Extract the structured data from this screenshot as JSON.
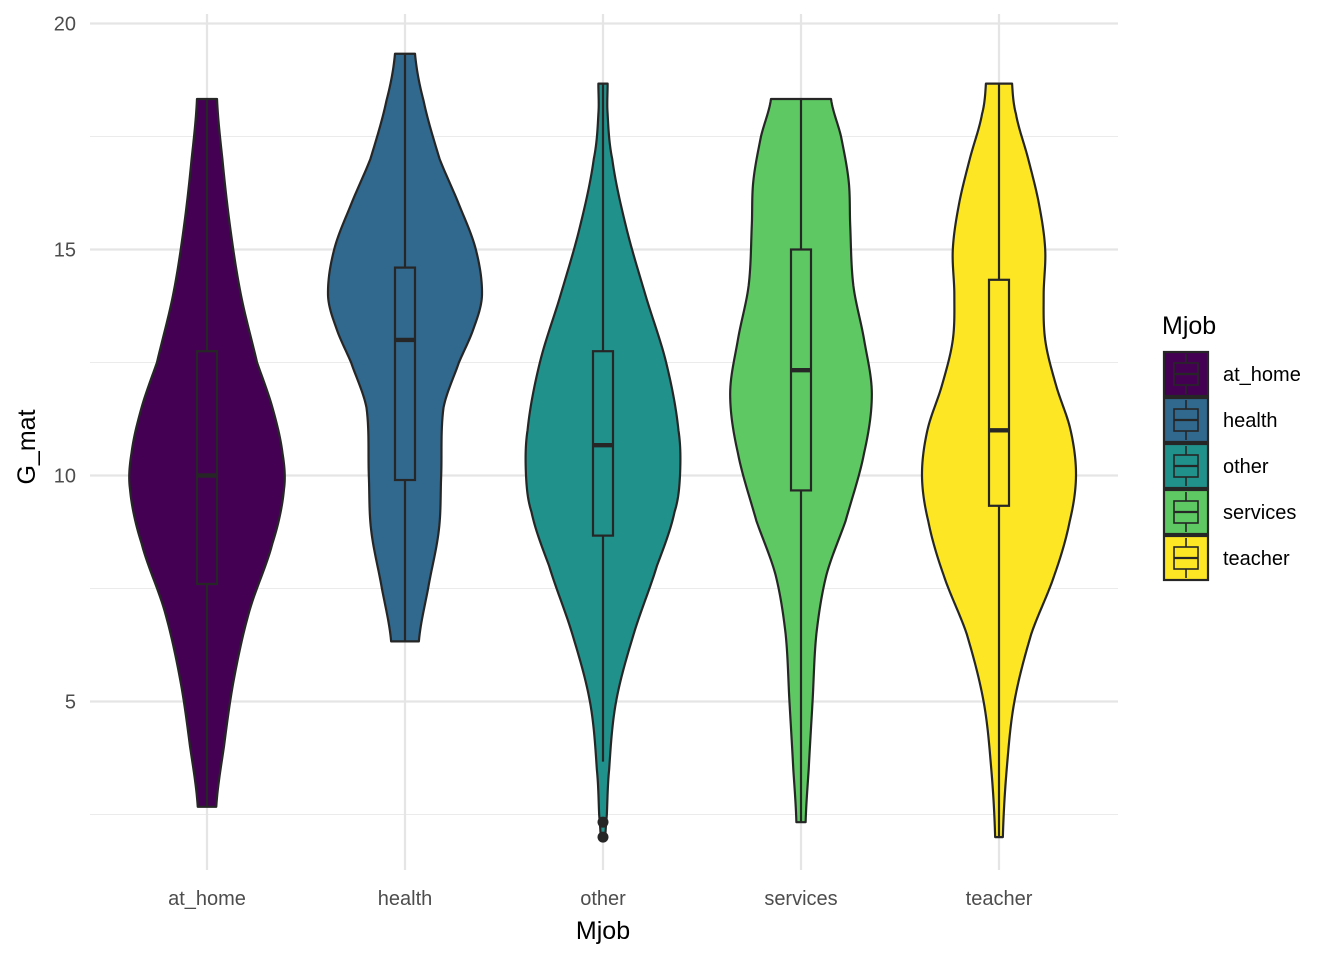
{
  "chart_data": {
    "type": "violin",
    "title": "",
    "xlabel": "Mjob",
    "ylabel": "G_mat",
    "ylim": [
      1.5,
      20.5
    ],
    "yticks": [
      5,
      10,
      15,
      20
    ],
    "y_minor_gridlines": [
      2.5,
      7.5,
      12.5,
      17.5
    ],
    "grid": true,
    "legend": {
      "title": "Mjob",
      "placement": "right",
      "entries": [
        "at_home",
        "health",
        "other",
        "services",
        "teacher"
      ]
    },
    "categories": [
      "at_home",
      "health",
      "other",
      "services",
      "teacher"
    ],
    "series": [
      {
        "name": "at_home",
        "color": "#440154",
        "min": 2.67,
        "max": 18.33,
        "box": {
          "lower_whisker": 2.67,
          "q1": 7.6,
          "median": 10.0,
          "q3": 12.75,
          "upper_whisker": 18.33
        },
        "outliers": [],
        "density_profile": [
          [
            2.67,
            0.12
          ],
          [
            4.0,
            0.22
          ],
          [
            5.5,
            0.35
          ],
          [
            7.0,
            0.55
          ],
          [
            8.5,
            0.85
          ],
          [
            9.7,
            1.0
          ],
          [
            10.5,
            0.98
          ],
          [
            11.5,
            0.85
          ],
          [
            12.5,
            0.65
          ],
          [
            14.0,
            0.44
          ],
          [
            15.5,
            0.3
          ],
          [
            17.0,
            0.2
          ],
          [
            18.33,
            0.13
          ]
        ]
      },
      {
        "name": "health",
        "color": "#31688e",
        "min": 6.33,
        "max": 19.33,
        "box": {
          "lower_whisker": 6.33,
          "q1": 9.9,
          "median": 13.0,
          "q3": 14.6,
          "upper_whisker": 19.33
        },
        "outliers": [],
        "density_profile": [
          [
            6.33,
            0.18
          ],
          [
            7.5,
            0.3
          ],
          [
            8.8,
            0.44
          ],
          [
            10.0,
            0.47
          ],
          [
            11.5,
            0.5
          ],
          [
            12.5,
            0.7
          ],
          [
            13.3,
            0.9
          ],
          [
            14.0,
            1.0
          ],
          [
            15.0,
            0.92
          ],
          [
            16.0,
            0.7
          ],
          [
            17.0,
            0.45
          ],
          [
            18.3,
            0.24
          ],
          [
            19.33,
            0.13
          ]
        ]
      },
      {
        "name": "other",
        "color": "#21918c",
        "min": 2.0,
        "max": 18.67,
        "box": {
          "lower_whisker": 3.67,
          "q1": 8.67,
          "median": 10.67,
          "q3": 12.75,
          "upper_whisker": 18.67
        },
        "outliers": [
          2.0,
          2.33
        ],
        "density_profile": [
          [
            2.0,
            0.03
          ],
          [
            2.5,
            0.05
          ],
          [
            3.5,
            0.08
          ],
          [
            5.0,
            0.17
          ],
          [
            6.5,
            0.4
          ],
          [
            8.0,
            0.7
          ],
          [
            9.2,
            0.93
          ],
          [
            10.0,
            1.0
          ],
          [
            11.0,
            0.98
          ],
          [
            12.5,
            0.82
          ],
          [
            14.0,
            0.55
          ],
          [
            15.5,
            0.3
          ],
          [
            17.0,
            0.12
          ],
          [
            18.0,
            0.06
          ],
          [
            18.67,
            0.06
          ]
        ]
      },
      {
        "name": "services",
        "color": "#5ec962",
        "min": 2.33,
        "max": 18.33,
        "box": {
          "lower_whisker": 2.33,
          "q1": 9.67,
          "median": 12.33,
          "q3": 15.0,
          "upper_whisker": 18.33
        },
        "outliers": [],
        "density_profile": [
          [
            2.33,
            0.06
          ],
          [
            3.5,
            0.1
          ],
          [
            5.0,
            0.15
          ],
          [
            6.5,
            0.2
          ],
          [
            7.8,
            0.33
          ],
          [
            9.0,
            0.58
          ],
          [
            10.5,
            0.82
          ],
          [
            11.8,
            0.92
          ],
          [
            13.0,
            0.82
          ],
          [
            14.2,
            0.68
          ],
          [
            15.5,
            0.64
          ],
          [
            16.5,
            0.62
          ],
          [
            17.5,
            0.52
          ],
          [
            18.33,
            0.39
          ]
        ]
      },
      {
        "name": "teacher",
        "color": "#fde725",
        "min": 2.0,
        "max": 18.67,
        "box": {
          "lower_whisker": 2.0,
          "q1": 9.33,
          "median": 11.0,
          "q3": 14.33,
          "upper_whisker": 18.67
        },
        "outliers": [],
        "density_profile": [
          [
            2.0,
            0.05
          ],
          [
            3.5,
            0.1
          ],
          [
            5.0,
            0.2
          ],
          [
            6.5,
            0.42
          ],
          [
            7.8,
            0.72
          ],
          [
            9.0,
            0.92
          ],
          [
            10.0,
            1.0
          ],
          [
            11.0,
            0.93
          ],
          [
            12.0,
            0.74
          ],
          [
            13.0,
            0.6
          ],
          [
            14.0,
            0.58
          ],
          [
            15.0,
            0.6
          ],
          [
            16.0,
            0.52
          ],
          [
            17.0,
            0.38
          ],
          [
            18.0,
            0.22
          ],
          [
            18.67,
            0.17
          ]
        ]
      }
    ]
  }
}
